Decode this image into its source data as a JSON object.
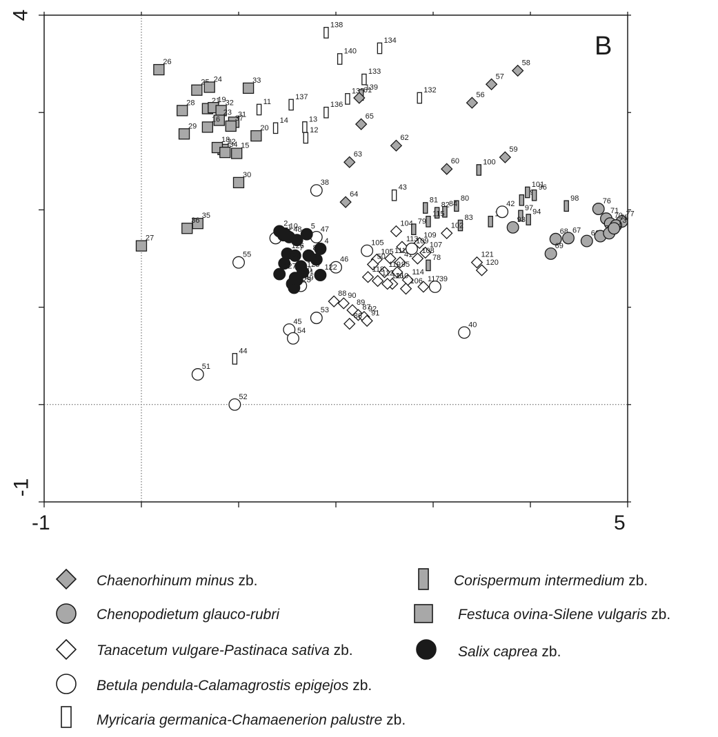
{
  "chart_data": {
    "type": "scatter",
    "panel_label": "B",
    "x_tick_labels": [
      "-1",
      "5"
    ],
    "y_tick_labels": [
      "4",
      "-1"
    ],
    "xlim": [
      -1,
      5
    ],
    "ylim": [
      -1,
      4
    ],
    "reference_lines": {
      "x": 0,
      "y": 0
    },
    "groups": {
      "chaenorhinum": {
        "name_italic": "Chaenorhinum minus",
        "suffix": " zb.",
        "marker": "diamond",
        "fill": "#a8a8a8"
      },
      "chenopodietum": {
        "name_italic": "Chenopodietum glauco-rubri",
        "suffix": "",
        "marker": "circle",
        "fill": "#a8a8a8"
      },
      "tanacetum": {
        "name_italic": "Tanacetum vulgare-Pastinaca sativa",
        "suffix": " zb.",
        "marker": "diamond",
        "fill": "#ffffff"
      },
      "betula": {
        "name_italic": "Betula pendula-Calamagrostis epigejos",
        "suffix": " zb.",
        "marker": "circle",
        "fill": "#ffffff"
      },
      "myricaria": {
        "name_italic": "Myricaria germanica-Chamaenerion palustre",
        "suffix": " zb.",
        "marker": "narrow-rect",
        "fill": "#ffffff"
      },
      "corispermum": {
        "name_italic": "Corispermum intermedium",
        "suffix": " zb.",
        "marker": "narrow-rect",
        "fill": "#a8a8a8"
      },
      "festuca": {
        "name_italic": "Festuca ovina-Silene vulgaris",
        "suffix": " zb.",
        "marker": "square",
        "fill": "#a8a8a8"
      },
      "salix": {
        "name_italic": "Salix caprea",
        "suffix": " zb.",
        "marker": "circle",
        "fill": "#1a1a1a"
      }
    },
    "points": [
      {
        "id": "26",
        "g": "festuca",
        "x": 0.18,
        "y": 3.44
      },
      {
        "id": "25",
        "g": "festuca",
        "x": 0.57,
        "y": 3.23
      },
      {
        "id": "24",
        "g": "festuca",
        "x": 0.7,
        "y": 3.26
      },
      {
        "id": "33",
        "g": "festuca",
        "x": 1.1,
        "y": 3.25
      },
      {
        "id": "28",
        "g": "festuca",
        "x": 0.42,
        "y": 3.02
      },
      {
        "id": "21",
        "g": "festuca",
        "x": 0.68,
        "y": 3.04
      },
      {
        "id": "19",
        "g": "festuca",
        "x": 0.74,
        "y": 3.05
      },
      {
        "id": "32",
        "g": "festuca",
        "x": 0.82,
        "y": 3.02
      },
      {
        "id": "23",
        "g": "festuca",
        "x": 0.8,
        "y": 2.92
      },
      {
        "id": "31",
        "g": "festuca",
        "x": 0.95,
        "y": 2.9
      },
      {
        "id": "37",
        "g": "festuca",
        "x": 0.92,
        "y": 2.86
      },
      {
        "id": "29",
        "g": "festuca",
        "x": 0.44,
        "y": 2.78
      },
      {
        "id": "16",
        "g": "festuca",
        "x": 0.68,
        "y": 2.85
      },
      {
        "id": "20",
        "g": "festuca",
        "x": 1.18,
        "y": 2.76
      },
      {
        "id": "22",
        "g": "festuca",
        "x": 0.84,
        "y": 2.62
      },
      {
        "id": "18",
        "g": "festuca",
        "x": 0.78,
        "y": 2.64
      },
      {
        "id": "34",
        "g": "festuca",
        "x": 0.86,
        "y": 2.59
      },
      {
        "id": "15",
        "g": "festuca",
        "x": 0.98,
        "y": 2.58
      },
      {
        "id": "30",
        "g": "festuca",
        "x": 1.0,
        "y": 2.28
      },
      {
        "id": "35",
        "g": "festuca",
        "x": 0.58,
        "y": 1.86
      },
      {
        "id": "36",
        "g": "festuca",
        "x": 0.47,
        "y": 1.81
      },
      {
        "id": "27",
        "g": "festuca",
        "x": 0.0,
        "y": 1.63
      },
      {
        "id": "138",
        "g": "myricaria",
        "x": 1.9,
        "y": 3.82
      },
      {
        "id": "134",
        "g": "myricaria",
        "x": 2.45,
        "y": 3.66
      },
      {
        "id": "140",
        "g": "myricaria",
        "x": 2.04,
        "y": 3.55
      },
      {
        "id": "133",
        "g": "myricaria",
        "x": 2.29,
        "y": 3.34
      },
      {
        "id": "132",
        "g": "myricaria",
        "x": 2.86,
        "y": 3.15
      },
      {
        "id": "135",
        "g": "myricaria",
        "x": 2.12,
        "y": 3.14
      },
      {
        "id": "136",
        "g": "myricaria",
        "x": 1.9,
        "y": 3.0
      },
      {
        "id": "137",
        "g": "myricaria",
        "x": 1.54,
        "y": 3.08
      },
      {
        "id": "11",
        "g": "myricaria",
        "x": 1.21,
        "y": 3.03
      },
      {
        "id": "14",
        "g": "myricaria",
        "x": 1.38,
        "y": 2.84
      },
      {
        "id": "13",
        "g": "myricaria",
        "x": 1.68,
        "y": 2.85
      },
      {
        "id": "12",
        "g": "myricaria",
        "x": 1.69,
        "y": 2.74
      },
      {
        "id": "43",
        "g": "myricaria",
        "x": 2.6,
        "y": 2.15
      },
      {
        "id": "44",
        "g": "myricaria",
        "x": 0.96,
        "y": 0.47
      },
      {
        "id": "139",
        "g": "corispermum",
        "x": 2.26,
        "y": 3.18
      },
      {
        "id": "100",
        "g": "corispermum",
        "x": 3.47,
        "y": 2.41
      },
      {
        "id": "99",
        "g": "corispermum",
        "x": 3.91,
        "y": 2.1
      },
      {
        "id": "96",
        "g": "corispermum",
        "x": 4.04,
        "y": 2.15
      },
      {
        "id": "101",
        "g": "corispermum",
        "x": 3.97,
        "y": 2.18
      },
      {
        "id": "98",
        "g": "corispermum",
        "x": 4.37,
        "y": 2.04
      },
      {
        "id": "97",
        "g": "corispermum",
        "x": 3.9,
        "y": 1.94
      },
      {
        "id": "94",
        "g": "corispermum",
        "x": 3.98,
        "y": 1.9
      },
      {
        "id": "103",
        "g": "corispermum",
        "x": 3.59,
        "y": 1.88
      },
      {
        "id": "81",
        "g": "corispermum",
        "x": 2.92,
        "y": 2.02
      },
      {
        "id": "82",
        "g": "corispermum",
        "x": 3.04,
        "y": 1.97
      },
      {
        "id": "80",
        "g": "corispermum",
        "x": 3.24,
        "y": 2.04
      },
      {
        "id": "84",
        "g": "corispermum",
        "x": 3.12,
        "y": 1.98
      },
      {
        "id": "79",
        "g": "corispermum",
        "x": 2.8,
        "y": 1.8
      },
      {
        "id": "83",
        "g": "corispermum",
        "x": 3.28,
        "y": 1.84
      },
      {
        "id": "115",
        "g": "corispermum",
        "x": 2.95,
        "y": 1.88
      },
      {
        "id": "78",
        "g": "corispermum",
        "x": 2.95,
        "y": 1.43
      },
      {
        "id": "58",
        "g": "chaenorhinum",
        "x": 3.87,
        "y": 3.43
      },
      {
        "id": "57",
        "g": "chaenorhinum",
        "x": 3.6,
        "y": 3.29
      },
      {
        "id": "56",
        "g": "chaenorhinum",
        "x": 3.4,
        "y": 3.1
      },
      {
        "id": "61",
        "g": "chaenorhinum",
        "x": 2.24,
        "y": 3.15
      },
      {
        "id": "65",
        "g": "chaenorhinum",
        "x": 2.26,
        "y": 2.88
      },
      {
        "id": "62",
        "g": "chaenorhinum",
        "x": 2.62,
        "y": 2.66
      },
      {
        "id": "59",
        "g": "chaenorhinum",
        "x": 3.74,
        "y": 2.54
      },
      {
        "id": "63",
        "g": "chaenorhinum",
        "x": 2.14,
        "y": 2.49
      },
      {
        "id": "60",
        "g": "chaenorhinum",
        "x": 3.14,
        "y": 2.42
      },
      {
        "id": "64",
        "g": "chaenorhinum",
        "x": 2.1,
        "y": 2.08
      },
      {
        "id": "76",
        "g": "chenopodietum",
        "x": 4.7,
        "y": 2.01
      },
      {
        "id": "71",
        "g": "chenopodietum",
        "x": 4.78,
        "y": 1.91
      },
      {
        "id": "70",
        "g": "chenopodietum",
        "x": 4.82,
        "y": 1.86
      },
      {
        "id": "77",
        "g": "chenopodietum",
        "x": 4.94,
        "y": 1.88
      },
      {
        "id": "75",
        "g": "chenopodietum",
        "x": 4.88,
        "y": 1.84
      },
      {
        "id": "68",
        "g": "chenopodietum",
        "x": 4.26,
        "y": 1.7
      },
      {
        "id": "67",
        "g": "chenopodietum",
        "x": 4.39,
        "y": 1.71
      },
      {
        "id": "66",
        "g": "chenopodietum",
        "x": 4.58,
        "y": 1.68
      },
      {
        "id": "72",
        "g": "chenopodietum",
        "x": 4.72,
        "y": 1.73
      },
      {
        "id": "74",
        "g": "chenopodietum",
        "x": 4.81,
        "y": 1.76
      },
      {
        "id": "73",
        "g": "chenopodietum",
        "x": 4.86,
        "y": 1.81
      },
      {
        "id": "93",
        "g": "chenopodietum",
        "x": 3.82,
        "y": 1.82
      },
      {
        "id": "69",
        "g": "chenopodietum",
        "x": 4.21,
        "y": 1.55
      },
      {
        "id": "104",
        "g": "tanacetum",
        "x": 2.62,
        "y": 1.78
      },
      {
        "id": "102",
        "g": "tanacetum",
        "x": 3.14,
        "y": 1.76
      },
      {
        "id": "109",
        "g": "tanacetum",
        "x": 2.86,
        "y": 1.66
      },
      {
        "id": "113",
        "g": "tanacetum",
        "x": 2.68,
        "y": 1.62
      },
      {
        "id": "107",
        "g": "tanacetum",
        "x": 2.92,
        "y": 1.56
      },
      {
        "id": "108",
        "g": "tanacetum",
        "x": 2.84,
        "y": 1.5
      },
      {
        "id": "105",
        "g": "tanacetum",
        "x": 2.42,
        "y": 1.49
      },
      {
        "id": "111",
        "g": "tanacetum",
        "x": 2.56,
        "y": 1.5
      },
      {
        "id": "41",
        "g": "tanacetum",
        "x": 2.66,
        "y": 1.46
      },
      {
        "id": "50",
        "g": "tanacetum",
        "x": 2.38,
        "y": 1.44
      },
      {
        "id": "121",
        "g": "tanacetum",
        "x": 3.45,
        "y": 1.46
      },
      {
        "id": "120",
        "g": "tanacetum",
        "x": 3.5,
        "y": 1.38
      },
      {
        "id": "119",
        "g": "tanacetum",
        "x": 2.5,
        "y": 1.36
      },
      {
        "id": "95",
        "g": "tanacetum",
        "x": 2.63,
        "y": 1.36
      },
      {
        "id": "114",
        "g": "tanacetum",
        "x": 2.74,
        "y": 1.28
      },
      {
        "id": "118",
        "g": "tanacetum",
        "x": 2.33,
        "y": 1.31
      },
      {
        "id": "112",
        "g": "tanacetum",
        "x": 2.43,
        "y": 1.27
      },
      {
        "id": "110",
        "g": "tanacetum",
        "x": 2.58,
        "y": 1.24
      },
      {
        "id": "116",
        "g": "tanacetum",
        "x": 2.53,
        "y": 1.24
      },
      {
        "id": "106",
        "g": "tanacetum",
        "x": 2.72,
        "y": 1.19
      },
      {
        "id": "117",
        "g": "tanacetum",
        "x": 2.9,
        "y": 1.21
      },
      {
        "id": "88",
        "g": "tanacetum",
        "x": 1.98,
        "y": 1.06
      },
      {
        "id": "90",
        "g": "tanacetum",
        "x": 2.08,
        "y": 1.04
      },
      {
        "id": "89",
        "g": "tanacetum",
        "x": 2.17,
        "y": 0.97
      },
      {
        "id": "87",
        "g": "tanacetum",
        "x": 2.23,
        "y": 0.92
      },
      {
        "id": "92",
        "g": "tanacetum",
        "x": 2.29,
        "y": 0.9
      },
      {
        "id": "91",
        "g": "tanacetum",
        "x": 2.32,
        "y": 0.86
      },
      {
        "id": "86",
        "g": "tanacetum",
        "x": 2.14,
        "y": 0.83
      },
      {
        "id": "38",
        "g": "betula",
        "x": 1.8,
        "y": 2.2
      },
      {
        "id": "42",
        "g": "betula",
        "x": 3.71,
        "y": 1.98
      },
      {
        "id": "17",
        "g": "betula",
        "x": 1.38,
        "y": 1.71
      },
      {
        "id": "47",
        "g": "betula",
        "x": 1.8,
        "y": 1.72
      },
      {
        "id": "109b",
        "g": "betula",
        "x": 2.78,
        "y": 1.6
      },
      {
        "id": "105b",
        "g": "betula",
        "x": 2.32,
        "y": 1.58
      },
      {
        "id": "46",
        "g": "betula",
        "x": 2.0,
        "y": 1.41
      },
      {
        "id": "55",
        "g": "betula",
        "x": 1.0,
        "y": 1.46
      },
      {
        "id": "39",
        "g": "betula",
        "x": 3.02,
        "y": 1.21
      },
      {
        "id": "49",
        "g": "betula",
        "x": 1.64,
        "y": 1.22
      },
      {
        "id": "53",
        "g": "betula",
        "x": 1.8,
        "y": 0.89
      },
      {
        "id": "45",
        "g": "betula",
        "x": 1.52,
        "y": 0.77
      },
      {
        "id": "54",
        "g": "betula",
        "x": 1.56,
        "y": 0.68
      },
      {
        "id": "40",
        "g": "betula",
        "x": 3.32,
        "y": 0.74
      },
      {
        "id": "51",
        "g": "betula",
        "x": 0.58,
        "y": 0.31
      },
      {
        "id": "52",
        "g": "betula",
        "x": 0.96,
        "y": 0.0
      },
      {
        "id": "2",
        "g": "salix",
        "x": 1.42,
        "y": 1.78
      },
      {
        "id": "10",
        "g": "salix",
        "x": 1.48,
        "y": 1.75
      },
      {
        "id": "1",
        "g": "salix",
        "x": 1.46,
        "y": 1.74
      },
      {
        "id": "48",
        "g": "salix",
        "x": 1.52,
        "y": 1.72
      },
      {
        "id": "6",
        "g": "salix",
        "x": 1.6,
        "y": 1.69
      },
      {
        "id": "5",
        "g": "salix",
        "x": 1.7,
        "y": 1.75
      },
      {
        "id": "4",
        "g": "salix",
        "x": 1.84,
        "y": 1.6
      },
      {
        "id": "126",
        "g": "salix",
        "x": 1.5,
        "y": 1.55
      },
      {
        "id": "7",
        "g": "salix",
        "x": 1.58,
        "y": 1.53
      },
      {
        "id": "8",
        "g": "salix",
        "x": 1.72,
        "y": 1.53
      },
      {
        "id": "3",
        "g": "salix",
        "x": 1.8,
        "y": 1.49
      },
      {
        "id": "125",
        "g": "salix",
        "x": 1.47,
        "y": 1.45
      },
      {
        "id": "9",
        "g": "salix",
        "x": 1.64,
        "y": 1.42
      },
      {
        "id": "127",
        "g": "salix",
        "x": 1.42,
        "y": 1.34
      },
      {
        "id": "128",
        "g": "salix",
        "x": 1.66,
        "y": 1.36
      },
      {
        "id": "130",
        "g": "salix",
        "x": 1.58,
        "y": 1.3
      },
      {
        "id": "122",
        "g": "salix",
        "x": 1.84,
        "y": 1.33
      },
      {
        "id": "124",
        "g": "salix",
        "x": 1.55,
        "y": 1.24
      },
      {
        "id": "123",
        "g": "salix",
        "x": 1.57,
        "y": 1.2
      },
      {
        "id": "131",
        "g": "salix",
        "x": 1.6,
        "y": 1.28
      }
    ]
  },
  "legend": [
    {
      "g": "chaenorhinum",
      "italic": "Chaenorhinum minus",
      "suffix": " zb."
    },
    {
      "g": "corispermum",
      "italic": "Corispermum intermedium",
      "suffix": " zb."
    },
    {
      "g": "chenopodietum",
      "italic": "Chenopodietum glauco-rubri",
      "suffix": ""
    },
    {
      "g": "festuca",
      "italic": "Festuca ovina-Silene vulgaris",
      "suffix": " zb."
    },
    {
      "g": "tanacetum",
      "italic": "Tanacetum vulgare-Pastinaca sativa",
      "suffix": " zb."
    },
    {
      "g": "salix",
      "italic": "Salix caprea",
      "suffix": " zb."
    },
    {
      "g": "betula",
      "italic": "Betula pendula-Calamagrostis epigejos",
      "suffix": " zb."
    },
    {
      "g": "myricaria",
      "italic": "Myricaria germanica-Chamaenerion palustre",
      "suffix": " zb."
    }
  ]
}
